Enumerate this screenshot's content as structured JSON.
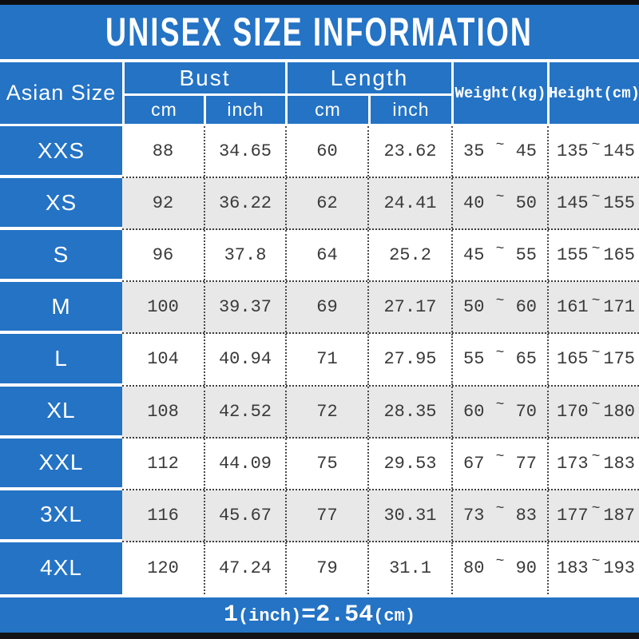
{
  "title": "UNISEX SIZE INFORMATION",
  "range_separator": "~",
  "colors": {
    "primary_blue": "#2473c5",
    "alt_row_gray": "#e9e8e8",
    "top_bottom_bar": "#101014",
    "body_text": "#3a3a3a",
    "header_text": "#ffffff"
  },
  "header": {
    "size_col": "Asian Size",
    "groups": [
      {
        "label": "Bust",
        "sub": [
          "cm",
          "inch"
        ]
      },
      {
        "label": "Length",
        "sub": [
          "cm",
          "inch"
        ]
      }
    ],
    "weight": "Weight(kg)",
    "height": "Height(cm)"
  },
  "rows": [
    {
      "size": "XXS",
      "bust_cm": "88",
      "bust_inch": "34.65",
      "length_cm": "60",
      "length_inch": "23.62",
      "weight_min": "35",
      "weight_max": "45",
      "height_min": "135",
      "height_max": "145"
    },
    {
      "size": "XS",
      "bust_cm": "92",
      "bust_inch": "36.22",
      "length_cm": "62",
      "length_inch": "24.41",
      "weight_min": "40",
      "weight_max": "50",
      "height_min": "145",
      "height_max": "155"
    },
    {
      "size": "S",
      "bust_cm": "96",
      "bust_inch": "37.8",
      "length_cm": "64",
      "length_inch": "25.2",
      "weight_min": "45",
      "weight_max": "55",
      "height_min": "155",
      "height_max": "165"
    },
    {
      "size": "M",
      "bust_cm": "100",
      "bust_inch": "39.37",
      "length_cm": "69",
      "length_inch": "27.17",
      "weight_min": "50",
      "weight_max": "60",
      "height_min": "161",
      "height_max": "171"
    },
    {
      "size": "L",
      "bust_cm": "104",
      "bust_inch": "40.94",
      "length_cm": "71",
      "length_inch": "27.95",
      "weight_min": "55",
      "weight_max": "65",
      "height_min": "165",
      "height_max": "175"
    },
    {
      "size": "XL",
      "bust_cm": "108",
      "bust_inch": "42.52",
      "length_cm": "72",
      "length_inch": "28.35",
      "weight_min": "60",
      "weight_max": "70",
      "height_min": "170",
      "height_max": "180"
    },
    {
      "size": "XXL",
      "bust_cm": "112",
      "bust_inch": "44.09",
      "length_cm": "75",
      "length_inch": "29.53",
      "weight_min": "67",
      "weight_max": "77",
      "height_min": "173",
      "height_max": "183"
    },
    {
      "size": "3XL",
      "bust_cm": "116",
      "bust_inch": "45.67",
      "length_cm": "77",
      "length_inch": "30.31",
      "weight_min": "73",
      "weight_max": "83",
      "height_min": "177",
      "height_max": "187"
    },
    {
      "size": "4XL",
      "bust_cm": "120",
      "bust_inch": "47.24",
      "length_cm": "79",
      "length_inch": "31.1",
      "weight_min": "80",
      "weight_max": "90",
      "height_min": "183",
      "height_max": "193"
    }
  ],
  "footer": {
    "text": "1(inch)=2.54(cm)",
    "segments": {
      "one": "1",
      "inch": "(inch)",
      "equals": "=",
      "value": "2.54",
      "cm": "(cm)"
    }
  },
  "chart_data": {
    "type": "table",
    "title": "UNISEX SIZE INFORMATION",
    "columns": [
      "Asian Size",
      "Bust cm",
      "Bust inch",
      "Length cm",
      "Length inch",
      "Weight(kg)",
      "Height(cm)"
    ],
    "rows": [
      [
        "XXS",
        88,
        34.65,
        60,
        23.62,
        "35~45",
        "135~145"
      ],
      [
        "XS",
        92,
        36.22,
        62,
        24.41,
        "40~50",
        "145~155"
      ],
      [
        "S",
        96,
        37.8,
        64,
        25.2,
        "45~55",
        "155~165"
      ],
      [
        "M",
        100,
        39.37,
        69,
        27.17,
        "50~60",
        "161~171"
      ],
      [
        "L",
        104,
        40.94,
        71,
        27.95,
        "55~65",
        "165~175"
      ],
      [
        "XL",
        108,
        42.52,
        72,
        28.35,
        "60~70",
        "170~180"
      ],
      [
        "XXL",
        112,
        44.09,
        75,
        29.53,
        "67~77",
        "173~183"
      ],
      [
        "3XL",
        116,
        45.67,
        77,
        30.31,
        "73~83",
        "177~187"
      ],
      [
        "4XL",
        120,
        47.24,
        79,
        31.1,
        "80~90",
        "183~193"
      ]
    ],
    "note": "1(inch)=2.54(cm)"
  }
}
